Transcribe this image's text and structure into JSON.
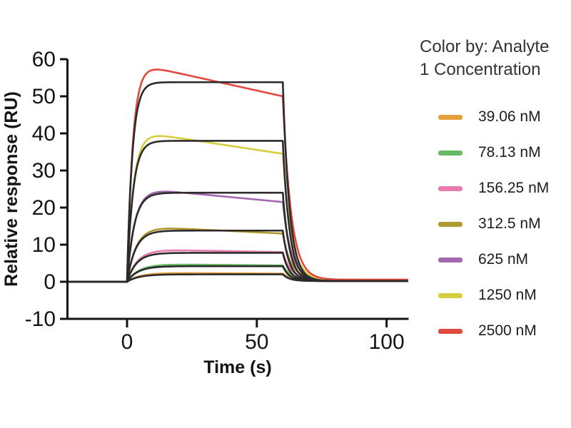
{
  "legend": {
    "title_line1": "Color by: Analyte",
    "title_line2": "1 Concentration",
    "entries": [
      {
        "label": "39.06 nM",
        "color": "#E5A13D"
      },
      {
        "label": "78.13 nM",
        "color": "#67B964"
      },
      {
        "label": "156.25 nM",
        "color": "#E87BAE"
      },
      {
        "label": "312.5 nM",
        "color": "#AE992F"
      },
      {
        "label": "625 nM",
        "color": "#A468B0"
      },
      {
        "label": "1250 nM",
        "color": "#D6CE3C"
      },
      {
        "label": "2500 nM",
        "color": "#E0493E"
      }
    ]
  },
  "chart_data": {
    "type": "line",
    "title": "",
    "xlabel": "Time (s)",
    "ylabel": "Relative response (RU)",
    "xlim": [
      -23,
      108
    ],
    "ylim": [
      -10,
      60
    ],
    "x_ticks": [
      0,
      50,
      100
    ],
    "y_ticks": [
      60,
      50,
      40,
      30,
      20,
      10,
      0,
      -10
    ],
    "grid": false,
    "legend_position": "right",
    "baseline_ru": 0,
    "association_start_s": 0,
    "dissociation_start_s": 60,
    "end_s": 108,
    "peak_time_s": 13,
    "fit_color": "#2D2A2B",
    "axis_color": "#141414",
    "data_dissoc_tau_s": 3.2,
    "data_floor_ru": 0.55,
    "fit_dissoc_tau_s": 2.6,
    "fit_floor_ru": 0.2,
    "series": [
      {
        "label": "39.06 nM",
        "concentration_nM": 39.06,
        "color": "#E5A13D",
        "rise_rate_per_s": 0.2,
        "peak_ru": 2.4,
        "end_assoc_ru": 2.2,
        "fit_plateau_ru": 2.0
      },
      {
        "label": "78.13 nM",
        "concentration_nM": 78.13,
        "color": "#67B964",
        "rise_rate_per_s": 0.22,
        "peak_ru": 4.7,
        "end_assoc_ru": 4.4,
        "fit_plateau_ru": 4.2
      },
      {
        "label": "156.25 nM",
        "concentration_nM": 156.25,
        "color": "#E87BAE",
        "rise_rate_per_s": 0.25,
        "peak_ru": 8.6,
        "end_assoc_ru": 8.0,
        "fit_plateau_ru": 7.8
      },
      {
        "label": "312.5 nM",
        "concentration_nM": 312.5,
        "color": "#AE992F",
        "rise_rate_per_s": 0.28,
        "peak_ru": 14.6,
        "end_assoc_ru": 13.0,
        "fit_plateau_ru": 13.8
      },
      {
        "label": "625 nM",
        "concentration_nM": 625,
        "color": "#A468B0",
        "rise_rate_per_s": 0.33,
        "peak_ru": 24.6,
        "end_assoc_ru": 21.5,
        "fit_plateau_ru": 24.0
      },
      {
        "label": "1250 nM",
        "concentration_nM": 1250,
        "color": "#D6CE3C",
        "rise_rate_per_s": 0.4,
        "peak_ru": 39.5,
        "end_assoc_ru": 34.5,
        "fit_plateau_ru": 38.0
      },
      {
        "label": "2500 nM",
        "concentration_nM": 2500,
        "color": "#E0493E",
        "rise_rate_per_s": 0.45,
        "peak_ru": 57.3,
        "end_assoc_ru": 50.0,
        "fit_plateau_ru": 53.8
      }
    ]
  }
}
